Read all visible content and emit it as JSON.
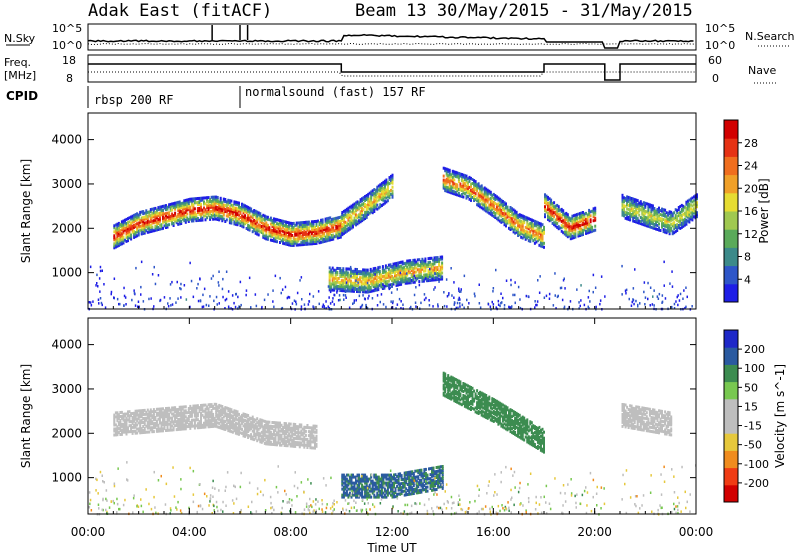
{
  "header": {
    "title": "Adak East (fitACF)",
    "subtitle": "Beam 13 30/May/2015 - 31/May/2015"
  },
  "left_labels": {
    "nsky": "N.Sky",
    "freq": "Freq.",
    "freq_unit": "[MHz]",
    "cpid": "CPID"
  },
  "right_labels": {
    "nsearch": "N.Search",
    "nave": "Nave"
  },
  "noise_panel": {
    "left_ticks": [
      "10^5",
      "10^0"
    ],
    "right_ticks": [
      "10^5",
      "10^0"
    ]
  },
  "freq_panel": {
    "left_ticks": [
      "18",
      "8"
    ],
    "right_ticks": [
      "60",
      "0"
    ]
  },
  "cpid_entries": [
    {
      "label": "rbsp 200 RF",
      "start_hour": 0
    },
    {
      "label": "normalsound (fast) 157 RF",
      "start_hour": 6
    }
  ],
  "power_colorbar": {
    "label": "Power [dB]",
    "ticks": [
      "4",
      "8",
      "12",
      "16",
      "20",
      "24",
      "28"
    ]
  },
  "velocity_colorbar": {
    "label": "Velocity [m s^-1]",
    "ticks": [
      "-200",
      "-100",
      "-50",
      "-15",
      "15",
      "50",
      "100",
      "200"
    ]
  },
  "chart_data": [
    {
      "type": "heatmap",
      "name": "power",
      "ylabel": "Slant Range [km]",
      "xlim": [
        0,
        24
      ],
      "ylim": [
        180,
        4600
      ],
      "y_ticks": [
        1000,
        2000,
        3000,
        4000
      ],
      "gaps_hours": [
        [
          20.4,
          21.0
        ]
      ],
      "features": [
        {
          "hours": [
            1.0,
            2.0,
            3.0,
            4.0,
            5.0,
            6.0,
            7.0,
            8.0,
            9.0,
            10.0
          ],
          "center_km": [
            1800,
            2100,
            2250,
            2400,
            2450,
            2300,
            2000,
            1850,
            1900,
            2050
          ],
          "peak_db": 28
        },
        {
          "hours": [
            10.0,
            11.0,
            12.0
          ],
          "center_km": [
            2100,
            2500,
            2950
          ],
          "peak_db": 20
        },
        {
          "hours": [
            14.0,
            15.0,
            16.0,
            17.0,
            18.0
          ],
          "center_km": [
            3100,
            2900,
            2500,
            2050,
            1800
          ],
          "peak_db": 24
        },
        {
          "hours": [
            18.0,
            19.0,
            20.0
          ],
          "center_km": [
            2500,
            2000,
            2200
          ],
          "peak_db": 28
        },
        {
          "hours": [
            21.0,
            22.0,
            23.0,
            24.0
          ],
          "center_km": [
            2500,
            2300,
            2100,
            2500
          ],
          "peak_db": 16
        },
        {
          "hours": [
            9.5,
            11.0,
            12.5,
            14.0
          ],
          "center_km": [
            850,
            800,
            1000,
            1100
          ],
          "peak_db": 20
        }
      ]
    },
    {
      "type": "heatmap",
      "name": "velocity",
      "ylabel": "Slant Range [km]",
      "xlabel": "Time UT",
      "xlim": [
        0,
        24
      ],
      "ylim": [
        180,
        4600
      ],
      "y_ticks": [
        1000,
        2000,
        3000,
        4000
      ],
      "x_ticks": [
        "00:00",
        "04:00",
        "08:00",
        "12:00",
        "16:00",
        "20:00",
        "00:00"
      ],
      "x_tick_hours": [
        0,
        4,
        8,
        12,
        16,
        20,
        24
      ],
      "gaps_hours": [
        [
          20.4,
          21.0
        ]
      ],
      "features": [
        {
          "hours": [
            1.0,
            3.0,
            5.0,
            7.0,
            9.0
          ],
          "center_km": [
            2200,
            2300,
            2400,
            2000,
            1900
          ],
          "velocity": 0
        },
        {
          "hours": [
            14.0,
            16.0,
            18.0
          ],
          "center_km": [
            3100,
            2500,
            1800
          ],
          "velocity": 50
        },
        {
          "hours": [
            10.0,
            12.0,
            14.0
          ],
          "center_km": [
            800,
            800,
            1000
          ],
          "velocity": 80
        },
        {
          "hours": [
            21.0,
            23.0
          ],
          "center_km": [
            2400,
            2200
          ],
          "velocity": 0
        }
      ]
    }
  ]
}
